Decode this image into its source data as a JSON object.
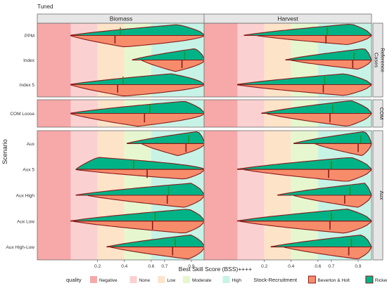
{
  "chart_data": {
    "type": "violin",
    "title": "Tuned",
    "xlabel": "Best Skill Score (BSS)++++",
    "ylabel": "Scenario",
    "x_ticks": [
      0.2,
      0.4,
      0.6,
      0.7,
      0.9
    ],
    "xlim": [
      -0.25,
      1.0
    ],
    "facet_columns": [
      "Biomass",
      "Harvest"
    ],
    "row_groups": [
      {
        "label": "Reference Cases",
        "scenarios": [
          "PPM",
          "Index",
          "Index 5"
        ]
      },
      {
        "label": "COM",
        "scenarios": [
          "COM Loose"
        ]
      },
      {
        "label": "Aux",
        "scenarios": [
          "Aux",
          "Aux 5",
          "Aux High",
          "Aux Low",
          "Aux High-Low"
        ]
      }
    ],
    "quality_bands": [
      {
        "name": "Negative",
        "from": -0.25,
        "to": 0.0,
        "color": "#f7a8a8"
      },
      {
        "name": "None",
        "from": 0.0,
        "to": 0.2,
        "color": "#fbd0d0"
      },
      {
        "name": "Low",
        "from": 0.2,
        "to": 0.4,
        "color": "#fde3c8"
      },
      {
        "name": "Moderate",
        "from": 0.4,
        "to": 0.6,
        "color": "#e6f7cf"
      },
      {
        "name": "High",
        "from": 0.6,
        "to": 1.0,
        "color": "#c7f3e6"
      }
    ],
    "legend": {
      "quality_title": "quality",
      "quality_items": [
        "Negative",
        "None",
        "Low",
        "Moderate",
        "High"
      ],
      "sr_title": "Stock-Recruitment",
      "sr_items": [
        {
          "name": "Beverton & Holt",
          "color": "#f78c6b"
        },
        {
          "name": "Ricker",
          "color": "#00b386"
        }
      ],
      "placement": "bottom"
    },
    "outline_color": "#8b1a1a",
    "series_colors": {
      "ricker": "#00b386",
      "bh": "#f78c6b"
    },
    "violins": {
      "Biomass": {
        "PPM": {
          "ricker": {
            "range": [
              0.0,
              1.0
            ],
            "median": 0.37,
            "mode": 0.8,
            "peak": 0.95
          },
          "bh": {
            "range": [
              0.0,
              1.0
            ],
            "median": 0.33,
            "mode": 0.4,
            "peak": 1.0
          }
        },
        "Index": {
          "ricker": {
            "range": [
              0.46,
              1.0
            ],
            "median": 0.85,
            "mode": 0.93,
            "peak": 1.0
          },
          "bh": {
            "range": [
              0.53,
              1.0
            ],
            "median": 0.83,
            "mode": 0.78,
            "peak": 1.0
          }
        },
        "Index 5": {
          "ricker": {
            "range": [
              0.0,
              1.0
            ],
            "median": 0.39,
            "mode": 0.75,
            "peak": 0.95
          },
          "bh": {
            "range": [
              0.0,
              1.0
            ],
            "median": 0.35,
            "mode": 0.4,
            "peak": 1.0
          }
        },
        "COM Loose": {
          "ricker": {
            "range": [
              0.0,
              1.0
            ],
            "median": 0.59,
            "mode": 0.85,
            "peak": 0.95
          },
          "bh": {
            "range": [
              0.0,
              1.0
            ],
            "median": 0.55,
            "mode": 0.5,
            "peak": 1.0
          }
        },
        "Aux": {
          "ricker": {
            "range": [
              0.42,
              1.0
            ],
            "median": 0.88,
            "mode": 0.95,
            "peak": 1.0
          },
          "bh": {
            "range": [
              0.53,
              1.0
            ],
            "median": 0.86,
            "mode": 0.8,
            "peak": 1.0
          }
        },
        "Aux 5": {
          "ricker": {
            "range": [
              0.04,
              1.0
            ],
            "median": 0.47,
            "mode": 0.2,
            "peak": 1.0
          },
          "bh": {
            "range": [
              0.04,
              1.0
            ],
            "median": 0.57,
            "mode": 0.85,
            "peak": 0.8
          }
        },
        "Aux High": {
          "ricker": {
            "range": [
              0.04,
              1.0
            ],
            "median": 0.73,
            "mode": 0.9,
            "peak": 1.0
          },
          "bh": {
            "range": [
              0.13,
              1.0
            ],
            "median": 0.72,
            "mode": 0.85,
            "peak": 1.0
          }
        },
        "Aux Low": {
          "ricker": {
            "range": [
              0.0,
              1.0
            ],
            "median": 0.63,
            "mode": 0.88,
            "peak": 1.0
          },
          "bh": {
            "range": [
              0.02,
              1.0
            ],
            "median": 0.61,
            "mode": 0.85,
            "peak": 1.0
          }
        },
        "Aux High-Low": {
          "ricker": {
            "range": [
              0.27,
              1.0
            ],
            "median": 0.78,
            "mode": 0.9,
            "peak": 1.0
          },
          "bh": {
            "range": [
              0.3,
              1.0
            ],
            "median": 0.76,
            "mode": 0.88,
            "peak": 1.0
          }
        }
      },
      "Harvest": {
        "PPM": {
          "ricker": {
            "range": [
              0.05,
              1.0
            ],
            "median": 0.67,
            "mode": 0.85,
            "peak": 1.0
          },
          "bh": {
            "range": [
              0.15,
              1.0
            ],
            "median": 0.66,
            "mode": 0.82,
            "peak": 0.8
          }
        },
        "Index": {
          "ricker": {
            "range": [
              0.36,
              1.0
            ],
            "median": 0.87,
            "mode": 0.95,
            "peak": 1.0
          },
          "bh": {
            "range": [
              0.4,
              1.0
            ],
            "median": 0.86,
            "mode": 0.9,
            "peak": 0.8
          }
        },
        "Index 5": {
          "ricker": {
            "range": [
              0.0,
              1.0
            ],
            "median": 0.65,
            "mode": 0.8,
            "peak": 0.95
          },
          "bh": {
            "range": [
              0.0,
              1.0
            ],
            "median": 0.64,
            "mode": 0.8,
            "peak": 0.95
          }
        },
        "COM Loose": {
          "ricker": {
            "range": [
              0.18,
              1.0
            ],
            "median": 0.71,
            "mode": 0.85,
            "peak": 1.0
          },
          "bh": {
            "range": [
              0.22,
              1.0
            ],
            "median": 0.69,
            "mode": 0.82,
            "peak": 1.0
          }
        },
        "Aux": {
          "ricker": {
            "range": [
              0.42,
              1.0
            ],
            "median": 0.92,
            "mode": 0.95,
            "peak": 1.0
          },
          "bh": {
            "range": [
              0.58,
              1.0
            ],
            "median": 0.9,
            "mode": 0.93,
            "peak": 1.0
          }
        },
        "Aux 5": {
          "ricker": {
            "range": [
              0.0,
              1.0
            ],
            "median": 0.7,
            "mode": 0.85,
            "peak": 1.0
          },
          "bh": {
            "range": [
              0.05,
              1.0
            ],
            "median": 0.68,
            "mode": 0.82,
            "peak": 1.0
          }
        },
        "Aux High": {
          "ricker": {
            "range": [
              0.3,
              1.0
            ],
            "median": 0.84,
            "mode": 0.95,
            "peak": 1.0
          },
          "bh": {
            "range": [
              0.42,
              1.0
            ],
            "median": 0.8,
            "mode": 0.9,
            "peak": 1.0
          }
        },
        "Aux Low": {
          "ricker": {
            "range": [
              0.0,
              1.0
            ],
            "median": 0.7,
            "mode": 0.82,
            "peak": 1.0
          },
          "bh": {
            "range": [
              0.02,
              1.0
            ],
            "median": 0.69,
            "mode": 0.8,
            "peak": 1.0
          }
        },
        "Aux High-Low": {
          "ricker": {
            "range": [
              0.25,
              1.0
            ],
            "median": 0.85,
            "mode": 0.93,
            "peak": 1.0
          },
          "bh": {
            "range": [
              0.35,
              1.0
            ],
            "median": 0.83,
            "mode": 0.9,
            "peak": 1.0
          }
        }
      }
    }
  }
}
